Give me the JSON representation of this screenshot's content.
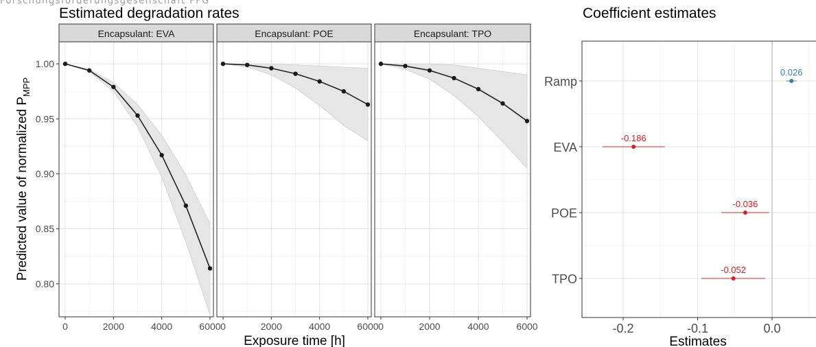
{
  "header_text": "Forschungsförderungsgesellschaft FFG",
  "chart_data": [
    {
      "type": "line",
      "title": "Estimated degradation rates",
      "xlabel": "Exposure time [h]",
      "ylabel": "Predicted value of normalized",
      "ylabel_symbol": "P",
      "ylabel_subscript": "MPP",
      "xlim": [
        0,
        6000
      ],
      "ylim": [
        0.77,
        1.02
      ],
      "x_ticks": [
        0,
        2000,
        4000,
        6000
      ],
      "y_ticks": [
        0.8,
        0.85,
        0.9,
        0.95,
        1.0
      ],
      "x_tick_labels": [
        "0",
        "2000",
        "4000",
        "6000"
      ],
      "y_tick_labels": [
        "0.80",
        "0.85",
        "0.90",
        "0.95",
        "1.00"
      ],
      "grid": true,
      "band": "confidence interval (grey ribbon)",
      "facets": [
        {
          "label": "Encapsulant: EVA",
          "x": [
            0,
            1000,
            2000,
            3000,
            4000,
            5000,
            6000
          ],
          "y": [
            1.0,
            0.994,
            0.979,
            0.953,
            0.917,
            0.871,
            0.814
          ],
          "lower": [
            1.0,
            0.993,
            0.975,
            0.943,
            0.897,
            0.838,
            0.772
          ],
          "upper": [
            1.0,
            0.995,
            0.983,
            0.963,
            0.935,
            0.899,
            0.855
          ]
        },
        {
          "label": "Encapsulant: POE",
          "x": [
            0,
            1000,
            2000,
            3000,
            4000,
            5000,
            6000
          ],
          "y": [
            1.0,
            0.999,
            0.996,
            0.991,
            0.984,
            0.975,
            0.963
          ],
          "lower": [
            1.0,
            0.997,
            0.99,
            0.978,
            0.962,
            0.944,
            0.93
          ],
          "upper": [
            1.0,
            1.0,
            1.0,
            0.999,
            0.998,
            0.997,
            0.996
          ]
        },
        {
          "label": "Encapsulant: TPO",
          "x": [
            0,
            1000,
            2000,
            3000,
            4000,
            5000,
            6000
          ],
          "y": [
            1.0,
            0.998,
            0.994,
            0.987,
            0.977,
            0.964,
            0.948
          ],
          "lower": [
            1.0,
            0.995,
            0.986,
            0.971,
            0.952,
            0.929,
            0.905
          ],
          "upper": [
            1.0,
            1.0,
            1.0,
            0.999,
            0.996,
            0.993,
            0.99
          ]
        }
      ]
    },
    {
      "type": "scatter",
      "title": "Coefficient estimates",
      "xlabel": "Estimates",
      "ylabel": "",
      "xlim": [
        -0.26,
        0.04
      ],
      "x_ticks": [
        -0.2,
        -0.1,
        0.0
      ],
      "x_tick_labels": [
        "-0.2",
        "-0.1",
        "0.0"
      ],
      "reference_line": 0,
      "grid": true,
      "categories": [
        "Ramp",
        "EVA",
        "POE",
        "TPO"
      ],
      "estimates": [
        0.026,
        -0.186,
        -0.036,
        -0.052
      ],
      "labels": [
        "0.026",
        "-0.186",
        "-0.036",
        "-0.052"
      ],
      "lower": [
        0.019,
        -0.228,
        -0.068,
        -0.095
      ],
      "upper": [
        0.033,
        -0.144,
        -0.004,
        -0.009
      ],
      "colors": [
        "#377eb8",
        "#e41a1c",
        "#e41a1c",
        "#e41a1c"
      ]
    }
  ]
}
